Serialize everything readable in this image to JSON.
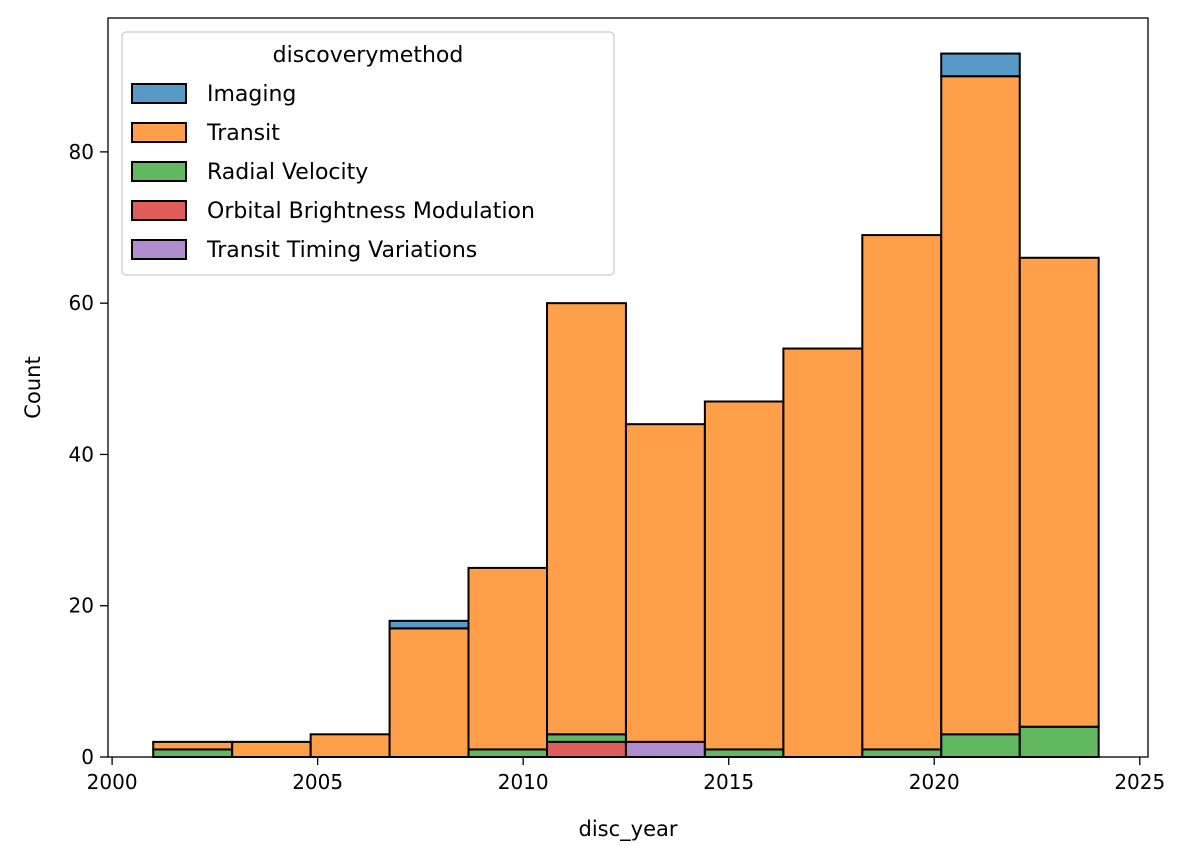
{
  "chart_data": {
    "type": "bar",
    "stacked": true,
    "xlabel": "disc_year",
    "ylabel": "Count",
    "xlim": [
      1999.9,
      2025.2
    ],
    "ylim": [
      0,
      97.7
    ],
    "xticks": [
      2000,
      2005,
      2010,
      2015,
      2020,
      2025
    ],
    "yticks": [
      0,
      20,
      40,
      60,
      80
    ],
    "grid": false,
    "legend": {
      "title": "discoverymethod",
      "placement": "top-left"
    },
    "bins": [
      [
        2001.0,
        2002.92
      ],
      [
        2002.92,
        2004.83
      ],
      [
        2004.83,
        2006.75
      ],
      [
        2006.75,
        2008.67
      ],
      [
        2008.67,
        2010.58
      ],
      [
        2010.58,
        2012.5
      ],
      [
        2012.5,
        2014.42
      ],
      [
        2014.42,
        2016.33
      ],
      [
        2016.33,
        2018.25
      ],
      [
        2018.25,
        2020.17
      ],
      [
        2020.17,
        2022.08
      ],
      [
        2022.08,
        2024.0
      ]
    ],
    "series": [
      {
        "name": "Imaging",
        "color": "#1f77b4",
        "values": [
          0,
          0,
          0,
          1,
          0,
          0,
          0,
          0,
          0,
          0,
          3,
          0
        ]
      },
      {
        "name": "Transit",
        "color": "#ff7f0e",
        "values": [
          1,
          2,
          3,
          17,
          24,
          57,
          42,
          46,
          54,
          68,
          87,
          62
        ]
      },
      {
        "name": "Radial Velocity",
        "color": "#2ca02c",
        "values": [
          1,
          0,
          0,
          0,
          1,
          1,
          0,
          1,
          0,
          1,
          3,
          4
        ]
      },
      {
        "name": "Orbital Brightness Modulation",
        "color": "#d62728",
        "values": [
          0,
          0,
          0,
          0,
          0,
          2,
          0,
          0,
          0,
          0,
          0,
          0
        ]
      },
      {
        "name": "Transit Timing Variations",
        "color": "#9467bd",
        "values": [
          0,
          0,
          0,
          0,
          0,
          0,
          2,
          0,
          0,
          0,
          0,
          0
        ]
      }
    ]
  }
}
